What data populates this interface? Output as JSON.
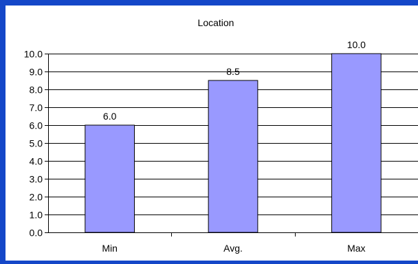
{
  "chart_data": {
    "type": "bar",
    "title": "Location",
    "xlabel": "",
    "ylabel": "",
    "categories": [
      "Min",
      "Avg.",
      "Max"
    ],
    "values": [
      6.0,
      8.5,
      10.0
    ],
    "value_labels": [
      "6.0",
      "8.5",
      "10.0"
    ],
    "ylim": [
      0,
      10
    ],
    "yticks": [
      0,
      1,
      2,
      3,
      4,
      5,
      6,
      7,
      8,
      9,
      10
    ],
    "ytick_labels": [
      "0.0",
      "1.0",
      "2.0",
      "3.0",
      "4.0",
      "5.0",
      "6.0",
      "7.0",
      "8.0",
      "9.0",
      "10.0"
    ],
    "grid": true,
    "legend": "none",
    "colors": {
      "background_border": "#1447c8",
      "plot_background": "#ffffff",
      "bar_fill": "#9999ff",
      "bar_stroke": "#000000",
      "gridline": "#000000"
    }
  }
}
